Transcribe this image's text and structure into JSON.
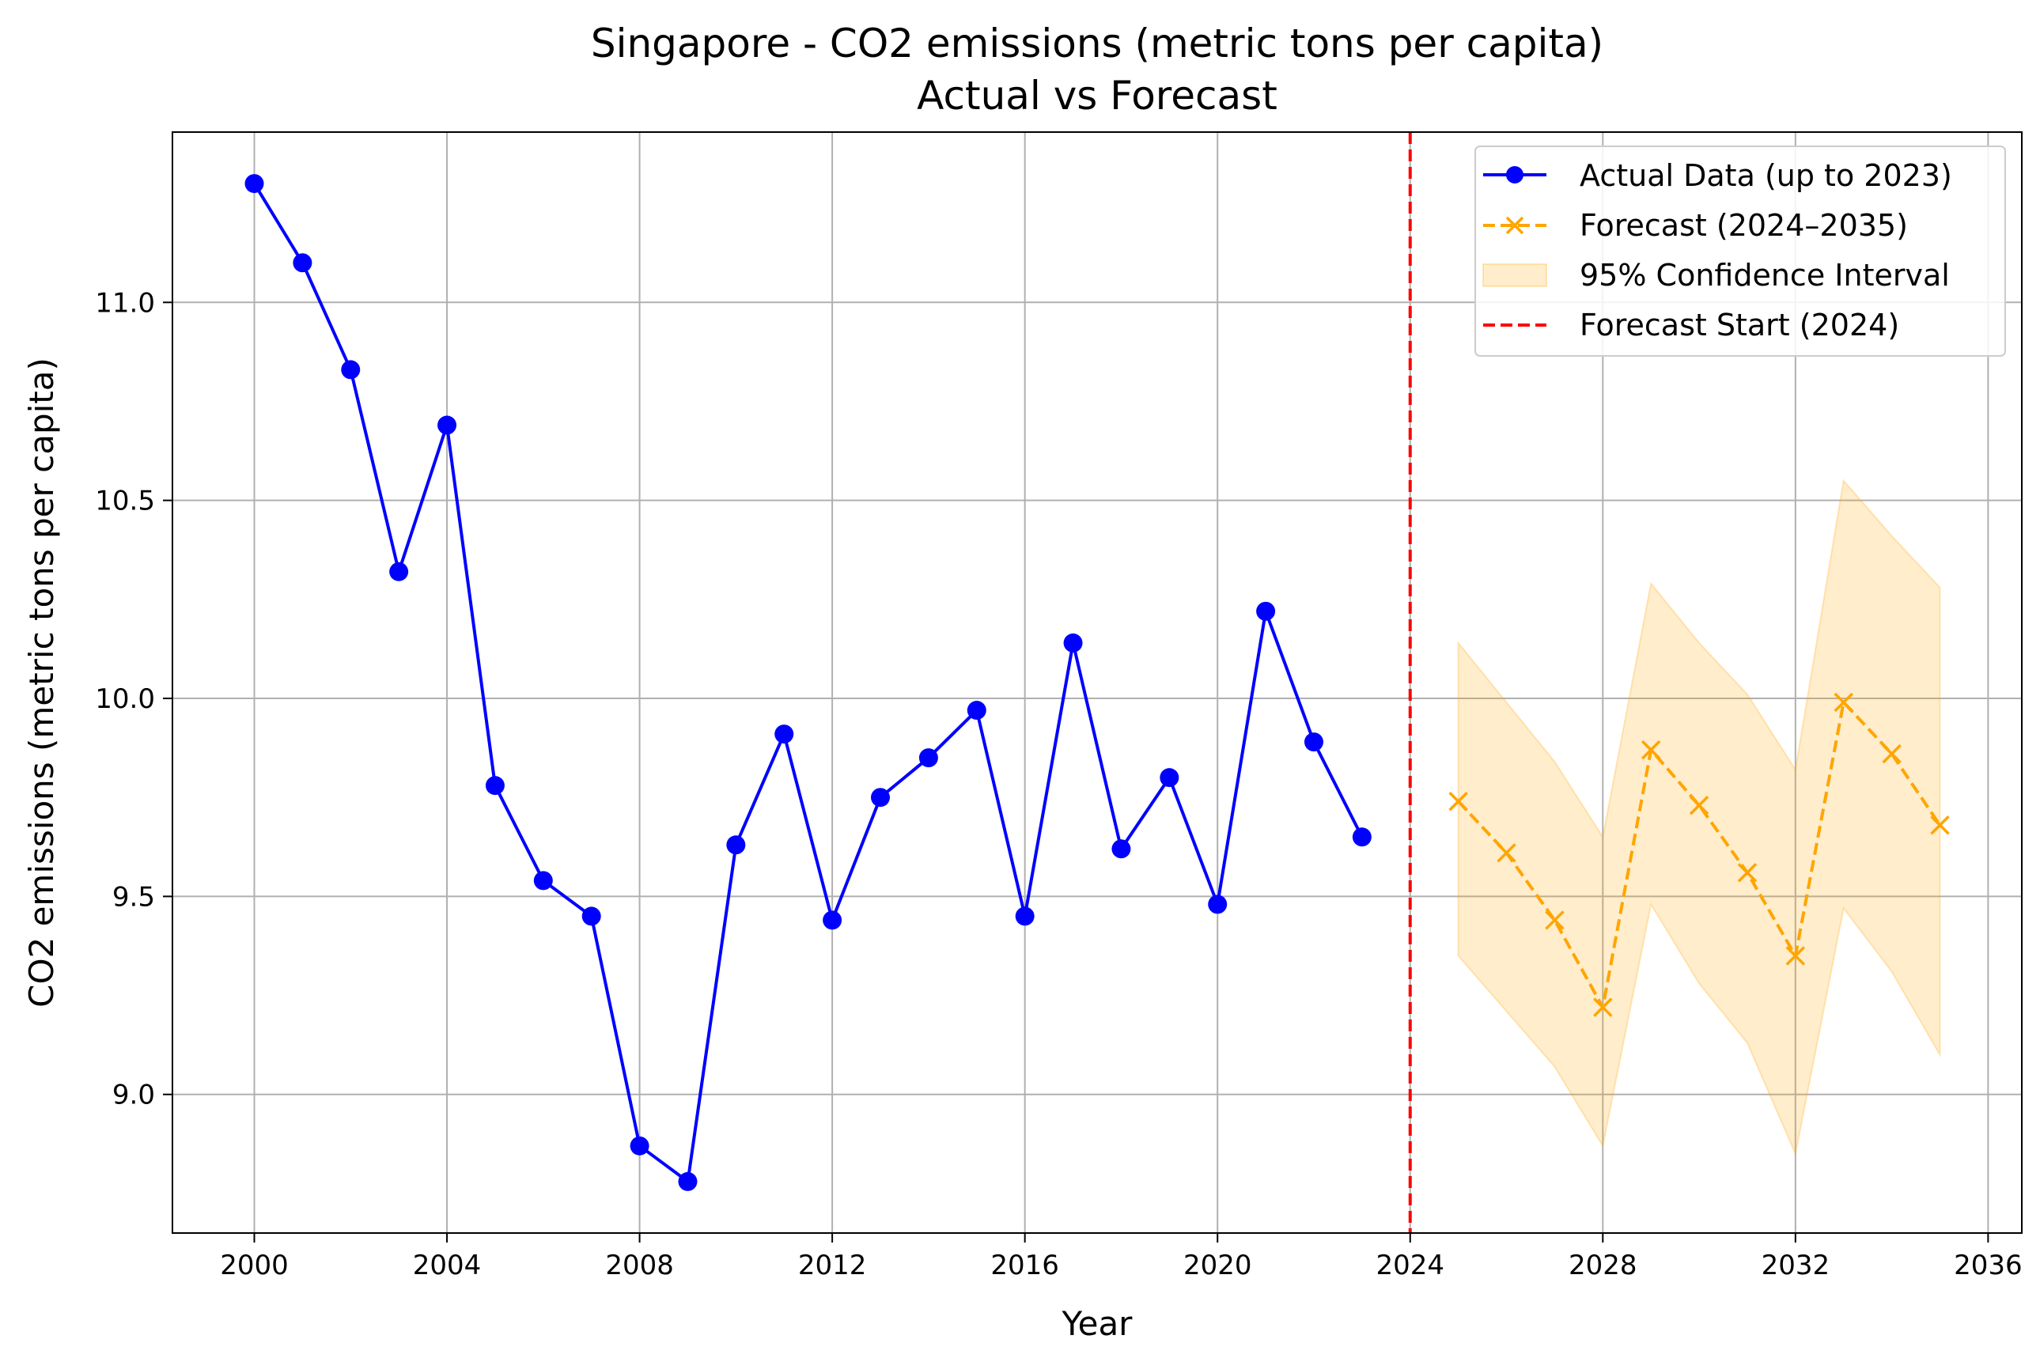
{
  "chart_data": {
    "type": "line",
    "title": "Singapore - CO2 emissions (metric tons per capita)",
    "subtitle": "Actual vs Forecast",
    "xlabel": "Year",
    "ylabel": "CO2 emissions (metric tons per capita)",
    "xlim": [
      1998.3,
      2036.7
    ],
    "ylim": [
      8.65,
      11.43
    ],
    "xticks": [
      2000,
      2004,
      2008,
      2012,
      2016,
      2020,
      2024,
      2028,
      2032,
      2036
    ],
    "yticks": [
      9.0,
      9.5,
      10.0,
      10.5,
      11.0
    ],
    "ytick_labels": [
      "9.0",
      "9.5",
      "10.0",
      "10.5",
      "11.0"
    ],
    "grid": true,
    "legend_position": "top-right",
    "series": [
      {
        "name": "Actual Data (up to 2023)",
        "color": "#0000ff",
        "style": "solid",
        "marker": "circle",
        "x": [
          2000,
          2001,
          2002,
          2003,
          2004,
          2005,
          2006,
          2007,
          2008,
          2009,
          2010,
          2011,
          2012,
          2013,
          2014,
          2015,
          2016,
          2017,
          2018,
          2019,
          2020,
          2021,
          2022,
          2023
        ],
        "y": [
          11.3,
          11.1,
          10.83,
          10.32,
          10.69,
          9.78,
          9.54,
          9.45,
          8.87,
          8.78,
          9.63,
          9.91,
          9.44,
          9.75,
          9.85,
          9.97,
          9.45,
          10.14,
          9.62,
          9.8,
          9.48,
          10.22,
          9.89,
          9.65
        ]
      },
      {
        "name": "Forecast (2024–2035)",
        "color": "#ffa500",
        "style": "dashed",
        "marker": "x",
        "x": [
          2025,
          2026,
          2027,
          2028,
          2029,
          2030,
          2031,
          2032,
          2033,
          2034,
          2035
        ],
        "y": [
          9.74,
          9.61,
          9.44,
          9.22,
          9.87,
          9.73,
          9.56,
          9.35,
          9.99,
          9.86,
          9.68
        ]
      }
    ],
    "confidence_interval": {
      "name": "95% Confidence Interval",
      "color": "#ffa500",
      "x": [
        2025,
        2026,
        2027,
        2028,
        2029,
        2030,
        2031,
        2032,
        2033,
        2034,
        2035
      ],
      "lower": [
        9.35,
        9.21,
        9.07,
        8.87,
        9.48,
        9.28,
        9.13,
        8.85,
        9.47,
        9.31,
        9.1
      ],
      "upper": [
        10.14,
        9.99,
        9.84,
        9.65,
        10.29,
        10.14,
        10.01,
        9.82,
        10.55,
        10.41,
        10.28
      ]
    },
    "vline": {
      "name": "Forecast Start (2024)",
      "x": 2024,
      "color": "#ff0000",
      "style": "dashed"
    }
  }
}
